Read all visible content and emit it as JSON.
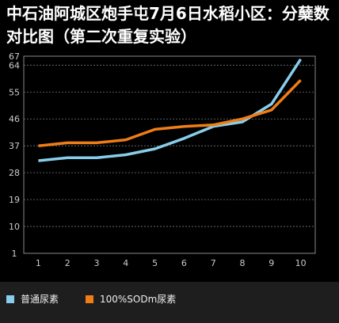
{
  "chart_data": {
    "type": "line",
    "title": "中石油阿城区炮手屯7月6日水稻小区：分蘖数对比图（第二次重复实验）",
    "xlabel": "",
    "ylabel": "",
    "categories": [
      "1",
      "2",
      "3",
      "4",
      "5",
      "6",
      "7",
      "8",
      "9",
      "10"
    ],
    "y_ticks": [
      1,
      10,
      19,
      28,
      37,
      46,
      55,
      64,
      67
    ],
    "ylim": [
      1,
      67
    ],
    "grid": "horizontal dashed",
    "legend_position": "bottom",
    "series": [
      {
        "name": "普通尿素",
        "color": "#87ceeb",
        "values": [
          32,
          33,
          33,
          34,
          36,
          39.5,
          43.5,
          45,
          51,
          66
        ]
      },
      {
        "name": "100%SODm尿素",
        "color": "#f07d16",
        "values": [
          37,
          38,
          38,
          39,
          42.5,
          43.5,
          44,
          46,
          49,
          59
        ]
      }
    ]
  }
}
